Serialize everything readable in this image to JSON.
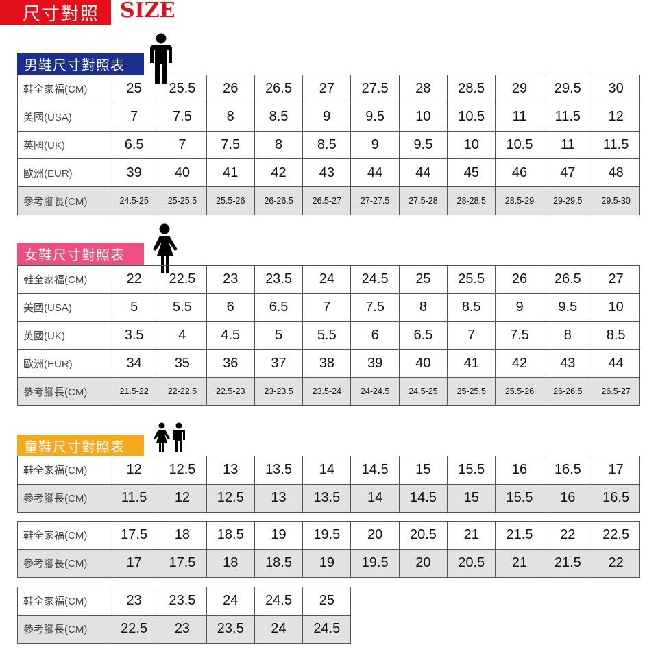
{
  "header": {
    "title_cn": "尺寸對照",
    "title_en": "SIZE"
  },
  "colors": {
    "red": "#e3101c",
    "men": "#1b2f8e",
    "women": "#ee4f7f",
    "kids": "#f5aa1d"
  },
  "men": {
    "label": "男鞋尺寸對照表",
    "icon": "man-icon",
    "rows": [
      {
        "label": "鞋全家福(CM)",
        "values": [
          "25",
          "25.5",
          "26",
          "26.5",
          "27",
          "27.5",
          "28",
          "28.5",
          "29",
          "29.5",
          "30"
        ]
      },
      {
        "label": "美國(USA)",
        "values": [
          "7",
          "7.5",
          "8",
          "8.5",
          "9",
          "9.5",
          "10",
          "10.5",
          "11",
          "11.5",
          "12"
        ]
      },
      {
        "label": "英國(UK)",
        "values": [
          "6.5",
          "7",
          "7.5",
          "8",
          "8.5",
          "9",
          "9.5",
          "10",
          "10.5",
          "11",
          "11.5"
        ]
      },
      {
        "label": "歐洲(EUR)",
        "values": [
          "39",
          "40",
          "41",
          "42",
          "43",
          "44",
          "44",
          "45",
          "46",
          "47",
          "48"
        ]
      },
      {
        "label": "參考腳長(CM)",
        "values": [
          "24.5-25",
          "25-25.5",
          "25.5-26",
          "26-26.5",
          "26.5-27",
          "27-27.5",
          "27.5-28",
          "28-28.5",
          "28.5-29",
          "29-29.5",
          "29.5-30"
        ]
      }
    ]
  },
  "women": {
    "label": "女鞋尺寸對照表",
    "icon": "woman-icon",
    "rows": [
      {
        "label": "鞋全家福(CM)",
        "values": [
          "22",
          "22.5",
          "23",
          "23.5",
          "24",
          "24.5",
          "25",
          "25.5",
          "26",
          "26.5",
          "27"
        ]
      },
      {
        "label": "美國(USA)",
        "values": [
          "5",
          "5.5",
          "6",
          "6.5",
          "7",
          "7.5",
          "8",
          "8.5",
          "9",
          "9.5",
          "10"
        ]
      },
      {
        "label": "英國(UK)",
        "values": [
          "3.5",
          "4",
          "4.5",
          "5",
          "5.5",
          "6",
          "6.5",
          "7",
          "7.5",
          "8",
          "8.5"
        ]
      },
      {
        "label": "歐洲(EUR)",
        "values": [
          "34",
          "35",
          "36",
          "37",
          "38",
          "39",
          "40",
          "41",
          "42",
          "43",
          "44"
        ]
      },
      {
        "label": "參考腳長(CM)",
        "values": [
          "21.5-22",
          "22-22.5",
          "22.5-23",
          "23-23.5",
          "23.5-24",
          "24-24.5",
          "24.5-25",
          "25-25.5",
          "25.5-26",
          "26-26.5",
          "26.5-27"
        ]
      }
    ]
  },
  "kids": {
    "label": "童鞋尺寸對照表",
    "icon": "children-icon",
    "tables": [
      [
        {
          "label": "鞋全家福(CM)",
          "values": [
            "12",
            "12.5",
            "13",
            "13.5",
            "14",
            "14.5",
            "15",
            "15.5",
            "16",
            "16.5",
            "17"
          ]
        },
        {
          "label": "參考腳長(CM)",
          "values": [
            "11.5",
            "12",
            "12.5",
            "13",
            "13.5",
            "14",
            "14.5",
            "15",
            "15.5",
            "16",
            "16.5"
          ]
        }
      ],
      [
        {
          "label": "鞋全家福(CM)",
          "values": [
            "17.5",
            "18",
            "18.5",
            "19",
            "19.5",
            "20",
            "20.5",
            "21",
            "21.5",
            "22",
            "22.5"
          ]
        },
        {
          "label": "參考腳長(CM)",
          "values": [
            "17",
            "17.5",
            "18",
            "18.5",
            "19",
            "19.5",
            "20",
            "20.5",
            "21",
            "21.5",
            "22"
          ]
        }
      ],
      [
        {
          "label": "鞋全家福(CM)",
          "values": [
            "23",
            "23.5",
            "24",
            "24.5",
            "25"
          ]
        },
        {
          "label": "參考腳長(CM)",
          "values": [
            "22.5",
            "23",
            "23.5",
            "24",
            "24.5"
          ]
        }
      ]
    ]
  }
}
